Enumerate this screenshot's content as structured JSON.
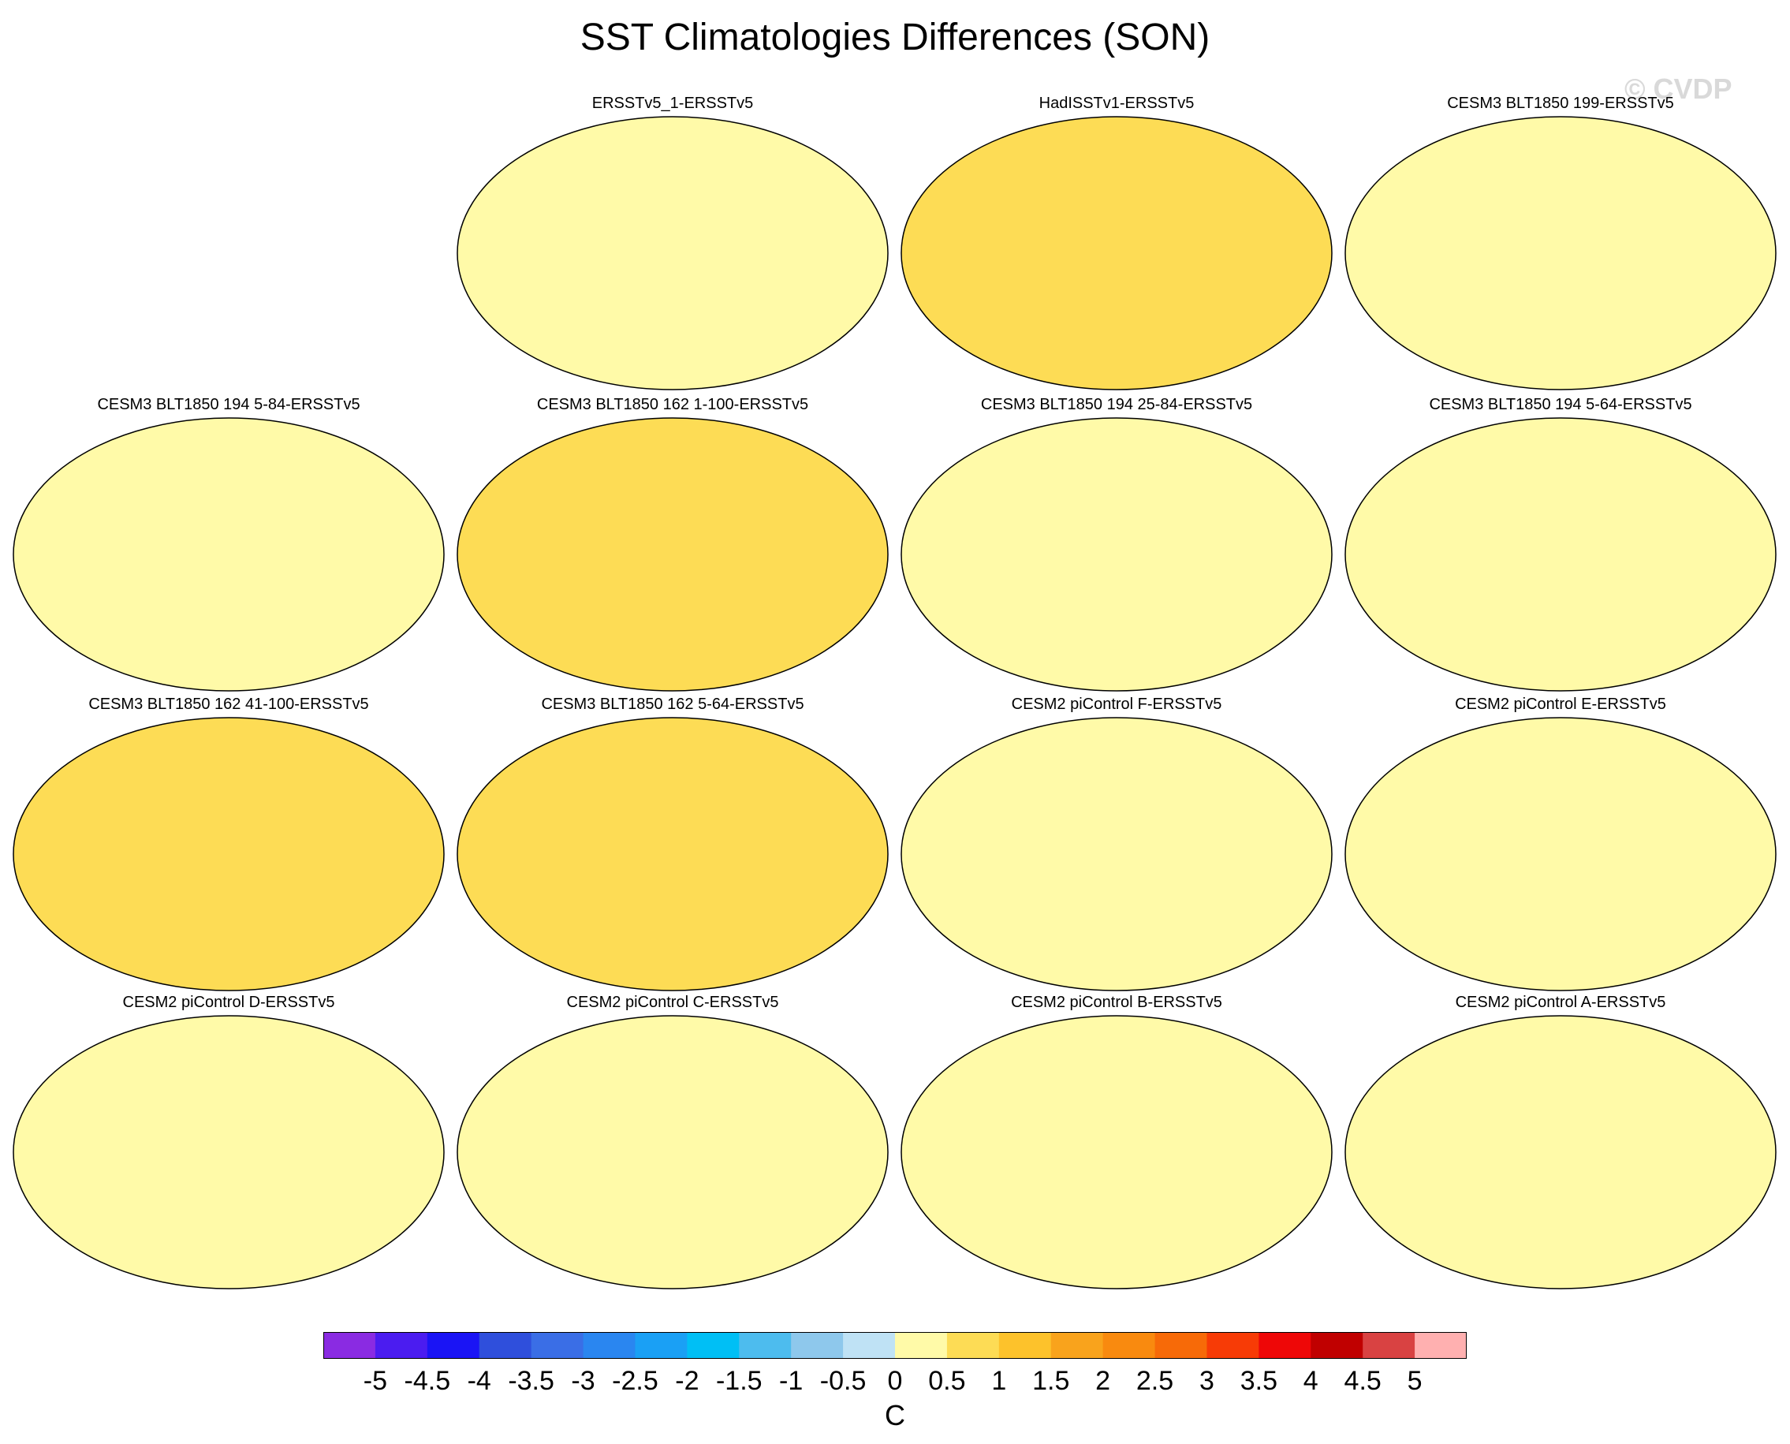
{
  "title": "SST Climatologies Differences (SON)",
  "watermark": "© CVDP",
  "units": "C",
  "colorbar": {
    "labels": [
      "-5",
      "-4.5",
      "-4",
      "-3.5",
      "-3",
      "-2.5",
      "-2",
      "-1.5",
      "-1",
      "-0.5",
      "0",
      "0.5",
      "1",
      "1.5",
      "2",
      "2.5",
      "3",
      "3.5",
      "4",
      "4.5",
      "5"
    ],
    "colors": [
      "#8a2be2",
      "#4b1cf0",
      "#1a14f5",
      "#2f4fdc",
      "#3a6ee6",
      "#2a86f0",
      "#1aa0f5",
      "#00bff5",
      "#4dbcee",
      "#8ec8ec",
      "#bfe2f5",
      "#fffaa8",
      "#fddc55",
      "#fdc22b",
      "#f9a31c",
      "#f98a0f",
      "#f76a08",
      "#f73b06",
      "#ee0707",
      "#c00000",
      "#d94242",
      "#ffb0b0"
    ]
  },
  "panels": [
    {
      "title": "",
      "pattern": "empty"
    },
    {
      "title": "ERSSTv5_1-ERSSTv5",
      "pattern": "obs1"
    },
    {
      "title": "HadISSTv1-ERSSTv5",
      "pattern": "obs2"
    },
    {
      "title": "CESM3 BLT1850 199-ERSSTv5",
      "pattern": "cesm3"
    },
    {
      "title": "CESM3 BLT1850 194 5-84-ERSSTv5",
      "pattern": "cesm3"
    },
    {
      "title": "CESM3 BLT1850 162 1-100-ERSSTv5",
      "pattern": "cesm3warm"
    },
    {
      "title": "CESM3 BLT1850 194 25-84-ERSSTv5",
      "pattern": "cesm3"
    },
    {
      "title": "CESM3 BLT1850 194 5-64-ERSSTv5",
      "pattern": "cesm3"
    },
    {
      "title": "CESM3 BLT1850 162 41-100-ERSSTv5",
      "pattern": "cesm3warm"
    },
    {
      "title": "CESM3 BLT1850 162 5-64-ERSSTv5",
      "pattern": "cesm3warm"
    },
    {
      "title": "CESM2 piControl F-ERSSTv5",
      "pattern": "cesm2"
    },
    {
      "title": "CESM2 piControl E-ERSSTv5",
      "pattern": "cesm2"
    },
    {
      "title": "CESM2 piControl D-ERSSTv5",
      "pattern": "cesm2"
    },
    {
      "title": "CESM2 piControl C-ERSSTv5",
      "pattern": "cesm2"
    },
    {
      "title": "CESM2 piControl B-ERSSTv5",
      "pattern": "cesm2"
    },
    {
      "title": "CESM2 piControl A-ERSSTv5",
      "pattern": "cesm2"
    }
  ]
}
